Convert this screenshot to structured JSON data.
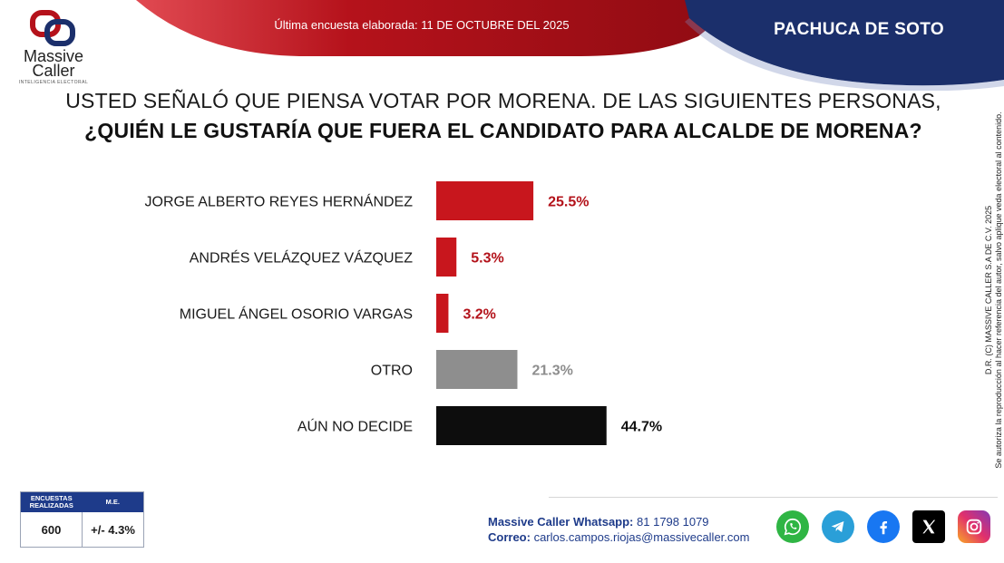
{
  "header": {
    "survey_date": "Última encuesta elaborada: 11 DE OCTUBRE DEL 2025",
    "city": "PACHUCA DE SOTO"
  },
  "logo": {
    "name": "Massive Caller",
    "line1": "Massive",
    "line2": "Caller",
    "tagline": "INTELIGENCIA ELECTORAL"
  },
  "question": {
    "line1": "USTED SEÑALÓ QUE PIENSA VOTAR POR MORENA. DE LAS SIGUIENTES PERSONAS,",
    "line2": "¿QUIÉN LE GUSTARÍA QUE FUERA EL CANDIDATO PARA ALCALDE DE MORENA?"
  },
  "chart_data": {
    "type": "bar",
    "orientation": "horizontal",
    "categories": [
      "JORGE ALBERTO REYES HERNÁNDEZ",
      "ANDRÉS VELÁZQUEZ VÁZQUEZ",
      "MIGUEL ÁNGEL OSORIO VARGAS",
      "OTRO",
      "AÚN NO DECIDE"
    ],
    "values": [
      25.5,
      5.3,
      3.2,
      21.3,
      44.7
    ],
    "labels": [
      "25.5%",
      "5.3%",
      "3.2%",
      "21.3%",
      "44.7%"
    ],
    "colors": [
      "#c8161d",
      "#c8161d",
      "#c8161d",
      "#8e8e8e",
      "#0d0d0d"
    ],
    "label_colors": [
      "#b3121a",
      "#b3121a",
      "#b3121a",
      "#8e8e8e",
      "#111111"
    ],
    "xlim": [
      0,
      100
    ],
    "title": "",
    "grid": false
  },
  "side_note": {
    "line1": "D.R. (C) MASSIVE CALLER S.A DE C.V. 2025",
    "line2": "Se autoriza la reproducción al hacer referencia del autor, salvo aplique veda electoral al contenido."
  },
  "survey_box": {
    "h1": "ENCUESTAS REALIZADAS",
    "h2": "M.E.",
    "v1": "600",
    "v2": "+/- 4.3%"
  },
  "contact": {
    "whatsapp_label": "Massive Caller Whatsapp:",
    "whatsapp_value": "81 1798 1079",
    "email_label": "Correo:",
    "email_value": "carlos.campos.riojas@massivecaller.com"
  },
  "colors": {
    "red": "#b5121b",
    "navy": "#1b2f6b",
    "blue": "#1e3b8a"
  }
}
